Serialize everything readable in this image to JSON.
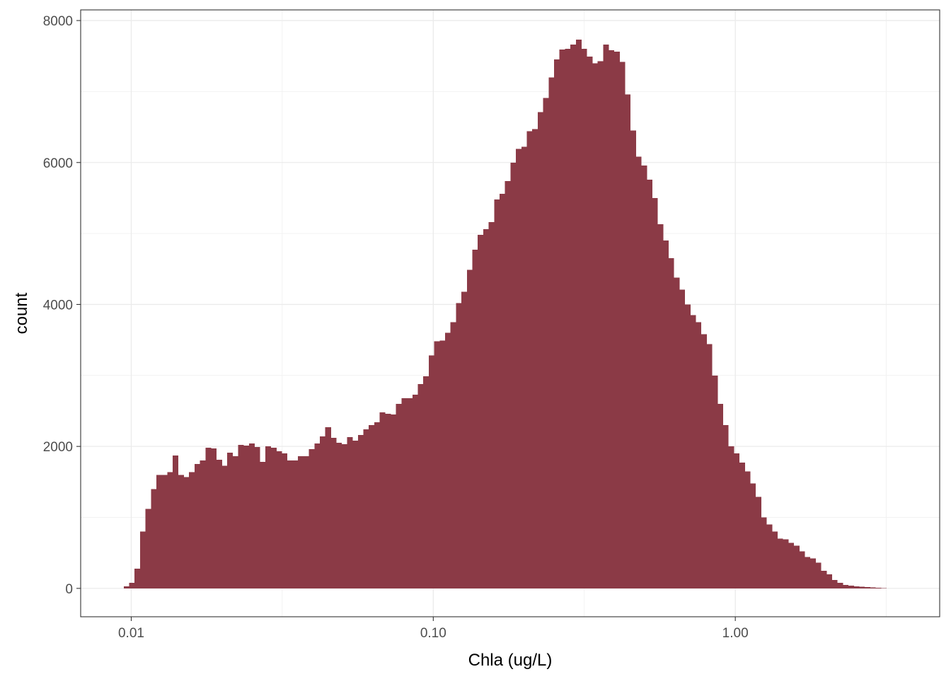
{
  "chart_data": {
    "type": "bar",
    "subtype": "histogram",
    "xlabel": "Chla (ug/L)",
    "ylabel": "count",
    "x_scale": "log10",
    "x_range": [
      0.0068,
      4.75
    ],
    "y_range": [
      -400,
      8150
    ],
    "x_ticks": [
      {
        "value": 0.01,
        "label": "0.01"
      },
      {
        "value": 0.1,
        "label": "0.10"
      },
      {
        "value": 1,
        "label": "1.00"
      }
    ],
    "x_minor_gridlines": [
      0.0316,
      0.316,
      3.16
    ],
    "y_ticks": [
      {
        "value": 0,
        "label": "0"
      },
      {
        "value": 2000,
        "label": "2000"
      },
      {
        "value": 4000,
        "label": "4000"
      },
      {
        "value": 6000,
        "label": "6000"
      },
      {
        "value": 8000,
        "label": "8000"
      }
    ],
    "y_minor_gridlines": [
      1000,
      3000,
      5000,
      7000
    ],
    "grid": true,
    "bar_color": "#8b3a46",
    "bins_log10_from": -2.025,
    "bins_log10_to": 0.5,
    "counts": [
      30,
      80,
      280,
      800,
      1120,
      1400,
      1600,
      1600,
      1640,
      1870,
      1600,
      1570,
      1640,
      1750,
      1800,
      1980,
      1970,
      1810,
      1730,
      1910,
      1860,
      2020,
      2010,
      2040,
      1990,
      1780,
      2000,
      1980,
      1930,
      1900,
      1800,
      1800,
      1860,
      1860,
      1960,
      2040,
      2140,
      2270,
      2120,
      2050,
      2030,
      2130,
      2080,
      2160,
      2240,
      2300,
      2340,
      2480,
      2460,
      2450,
      2600,
      2680,
      2680,
      2730,
      2880,
      2990,
      3280,
      3480,
      3490,
      3600,
      3750,
      4020,
      4180,
      4490,
      4770,
      4980,
      5060,
      5160,
      5480,
      5560,
      5740,
      6000,
      6190,
      6220,
      6440,
      6470,
      6710,
      6910,
      7200,
      7450,
      7590,
      7600,
      7660,
      7730,
      7600,
      7490,
      7400,
      7430,
      7660,
      7580,
      7560,
      7420,
      6960,
      6450,
      6080,
      5960,
      5760,
      5500,
      5130,
      4900,
      4650,
      4380,
      4210,
      4000,
      3850,
      3750,
      3580,
      3440,
      3000,
      2600,
      2300,
      2000,
      1900,
      1770,
      1650,
      1480,
      1290,
      1000,
      900,
      800,
      700,
      690,
      640,
      600,
      520,
      440,
      420,
      360,
      250,
      200,
      120,
      80,
      50,
      40,
      30,
      25,
      20,
      15,
      10,
      5
    ]
  }
}
